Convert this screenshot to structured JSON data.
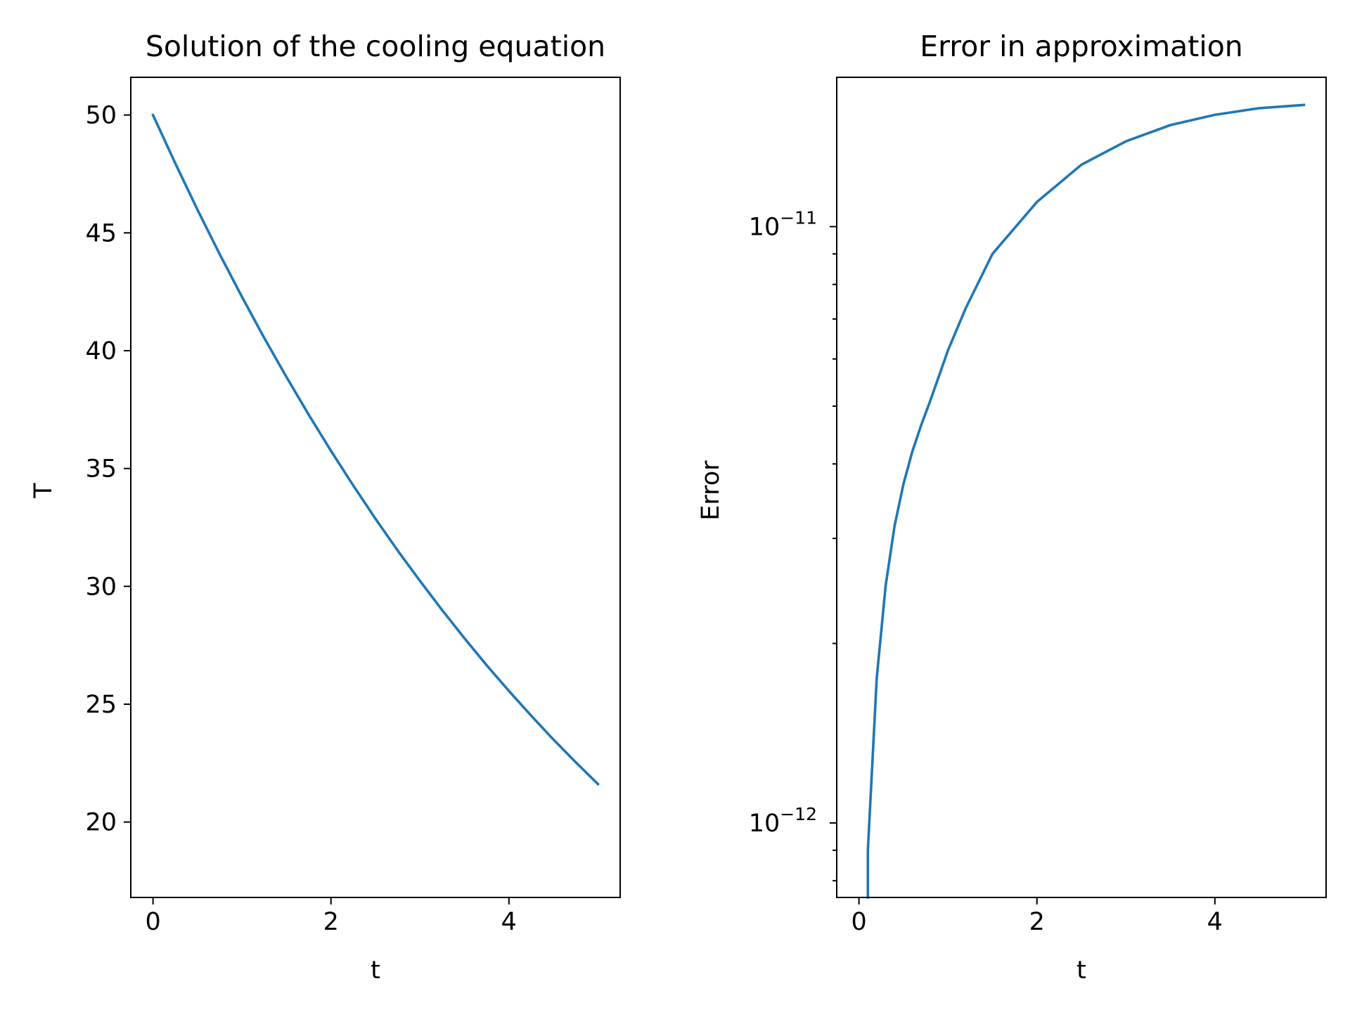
{
  "figure": {
    "background": "#ffffff",
    "line_color": "#1f77b4"
  },
  "chart_data": [
    {
      "type": "line",
      "title": "Solution of the cooling equation",
      "xlabel": "t",
      "ylabel": "T",
      "xscale": "linear",
      "yscale": "linear",
      "xlim": [
        -0.25,
        5.25
      ],
      "ylim": [
        16.8,
        51.6
      ],
      "xticks": [
        0,
        2,
        4
      ],
      "xtick_labels": [
        "0",
        "2",
        "4"
      ],
      "yticks": [
        20,
        25,
        30,
        35,
        40,
        45,
        50
      ],
      "ytick_labels": [
        "20",
        "25",
        "30",
        "35",
        "40",
        "45",
        "50"
      ],
      "grid": false,
      "legend": "none",
      "series": [
        {
          "color": "#1f77b4",
          "x": [
            0,
            0.25,
            0.5,
            0.75,
            1.0,
            1.25,
            1.5,
            1.75,
            2.0,
            2.25,
            2.5,
            2.75,
            3.0,
            3.25,
            3.5,
            3.75,
            4.0,
            4.25,
            4.5,
            4.75,
            5.0
          ],
          "y": [
            50.0,
            47.95,
            45.98,
            44.09,
            42.28,
            40.54,
            38.88,
            37.28,
            35.75,
            34.28,
            32.87,
            31.52,
            30.23,
            28.99,
            27.8,
            26.65,
            25.56,
            24.51,
            23.5,
            22.54,
            21.61
          ]
        }
      ]
    },
    {
      "type": "line",
      "title": "Error in approximation",
      "xlabel": "t",
      "ylabel": "Error",
      "xscale": "linear",
      "yscale": "log",
      "xlim": [
        -0.25,
        5.25
      ],
      "ylim": [
        7.5e-13,
        1.78e-11
      ],
      "xticks": [
        0,
        2,
        4
      ],
      "xtick_labels": [
        "0",
        "2",
        "4"
      ],
      "yticks_major": [
        1e-12,
        1e-11
      ],
      "ytick_labels": [
        {
          "base": "10",
          "exp": "−12"
        },
        {
          "base": "10",
          "exp": "−11"
        }
      ],
      "yticks_minor": [
        8e-13,
        9e-13,
        2e-12,
        3e-12,
        4e-12,
        5e-12,
        6e-12,
        7e-12,
        8e-12,
        9e-12
      ],
      "grid": false,
      "legend": "none",
      "series": [
        {
          "color": "#1f77b4",
          "x": [
            0.1,
            0.2,
            0.3,
            0.4,
            0.5,
            0.6,
            0.7,
            0.8,
            1.0,
            1.2,
            1.5,
            2.0,
            2.5,
            3.0,
            3.5,
            4.0,
            4.5,
            5.0
          ],
          "y": [
            9e-13,
            1.75e-12,
            2.5e-12,
            3.15e-12,
            3.7e-12,
            4.2e-12,
            4.65e-12,
            5.1e-12,
            6.2e-12,
            7.3e-12,
            9e-12,
            1.1e-11,
            1.27e-11,
            1.39e-11,
            1.48e-11,
            1.54e-11,
            1.58e-11,
            1.6e-11
          ]
        }
      ]
    }
  ]
}
